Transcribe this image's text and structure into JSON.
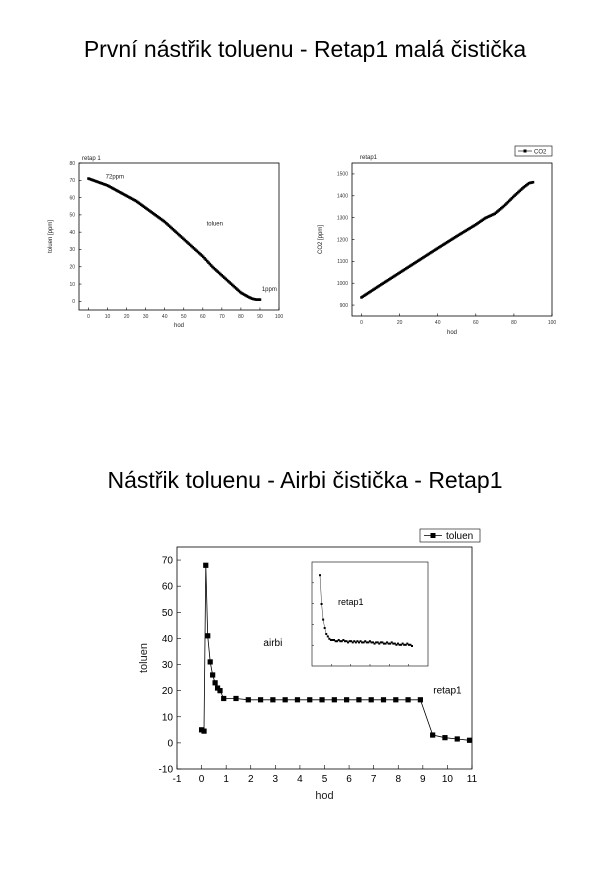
{
  "titles": {
    "top": "První nástřik toluenu - Retap1 malá čistička",
    "bottom": "Nástřik toluenu - Airbi čistička - Retap1"
  },
  "chart_data": [
    {
      "type": "scatter",
      "title": "retap 1",
      "xlabel": "hod",
      "ylabel": "toluen [ppm]",
      "xlim": [
        -5,
        100
      ],
      "ylim": [
        -5,
        80
      ],
      "xticks": [
        0,
        10,
        20,
        30,
        40,
        50,
        60,
        70,
        80,
        90,
        100
      ],
      "yticks": [
        0,
        10,
        20,
        30,
        40,
        50,
        60,
        70,
        80
      ],
      "series": [
        {
          "x": [
            0,
            5,
            10,
            15,
            20,
            25,
            30,
            35,
            40,
            45,
            50,
            55,
            60,
            65,
            70,
            75,
            80,
            84,
            86,
            88,
            90
          ],
          "y": [
            71,
            69,
            67,
            64,
            61,
            58,
            54,
            50,
            46,
            41,
            36,
            31,
            26,
            20,
            15,
            10,
            5,
            2.5,
            1.5,
            1,
            1
          ]
        }
      ],
      "annotations": [
        {
          "text": "72ppm",
          "x": 9,
          "y": 71
        },
        {
          "text": "toluen",
          "x": 62,
          "y": 44
        },
        {
          "text": "1ppm",
          "x": 91,
          "y": 6
        }
      ],
      "grid": false
    },
    {
      "type": "scatter",
      "title": "retap1",
      "xlabel": "hod",
      "ylabel": "CO2 [ppm]",
      "xlim": [
        -5,
        100
      ],
      "ylim": [
        850,
        1550
      ],
      "xticks": [
        0,
        20,
        40,
        60,
        80,
        100
      ],
      "yticks": [
        900,
        1000,
        1100,
        1200,
        1300,
        1400,
        1500
      ],
      "series": [
        {
          "name": "CO2",
          "x": [
            0,
            10,
            20,
            30,
            40,
            50,
            60,
            65,
            70,
            75,
            80,
            85,
            88,
            90
          ],
          "y": [
            935,
            992,
            1048,
            1104,
            1160,
            1215,
            1268,
            1298,
            1318,
            1355,
            1398,
            1438,
            1458,
            1462
          ]
        }
      ],
      "legend": "top-right",
      "grid": false
    },
    {
      "type": "scatter",
      "title": "",
      "xlabel": "hod",
      "ylabel": "toluen",
      "xlim": [
        -1,
        11
      ],
      "ylim": [
        -10,
        75
      ],
      "xticks": [
        -1,
        0,
        1,
        2,
        3,
        4,
        5,
        6,
        7,
        8,
        9,
        10,
        11
      ],
      "yticks": [
        -10,
        0,
        10,
        20,
        30,
        40,
        50,
        60,
        70
      ],
      "series": [
        {
          "name": "toluen",
          "x": [
            0,
            0.1,
            0.17,
            0.25,
            0.35,
            0.45,
            0.55,
            0.65,
            0.75,
            0.9,
            1.4,
            1.9,
            2.4,
            2.9,
            3.4,
            3.9,
            4.4,
            4.9,
            5.4,
            5.9,
            6.4,
            6.9,
            7.4,
            7.9,
            8.4,
            8.9,
            9.4,
            9.9,
            10.4,
            10.9
          ],
          "y": [
            5,
            4.5,
            68,
            41,
            31,
            26,
            23,
            21,
            20,
            17,
            17,
            16.5,
            16.5,
            16.5,
            16.5,
            16.5,
            16.5,
            16.5,
            16.5,
            16.5,
            16.5,
            16.5,
            16.5,
            16.5,
            16.5,
            16.5,
            3,
            2,
            1.5,
            1
          ]
        }
      ],
      "annotations": [
        {
          "text": "airbi",
          "x": 2.9,
          "y": 37
        },
        {
          "text": "retap1",
          "x": 10.0,
          "y": 19
        }
      ],
      "inset": {
        "title": "retap1",
        "values": [
          69,
          45,
          32,
          25,
          20,
          18,
          16,
          15,
          15,
          15,
          14,
          14,
          15,
          14,
          14,
          15,
          14,
          14,
          13,
          14,
          14,
          13,
          14,
          13,
          14,
          13,
          14,
          13,
          13,
          14,
          13,
          13,
          14,
          13,
          13,
          12,
          13,
          13,
          12,
          13,
          13,
          12,
          12,
          13,
          12,
          12,
          13,
          12,
          12,
          11,
          12,
          11,
          11,
          12,
          11,
          11,
          12,
          11,
          11,
          10
        ]
      },
      "legend": "top-right",
      "grid": false
    }
  ]
}
